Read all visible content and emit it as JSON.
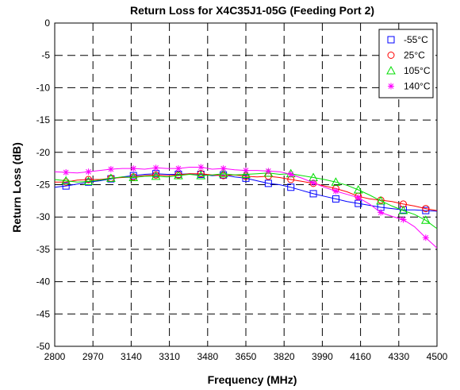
{
  "chart_data": {
    "type": "line",
    "title": "Return Loss for X4C35J1-05G (Feeding Port 2)",
    "xlabel": "Frequency (MHz)",
    "ylabel": "Return Loss (dB)",
    "xlim": [
      2800,
      4500
    ],
    "ylim": [
      -50,
      0
    ],
    "xticks": [
      2800,
      2970,
      3140,
      3310,
      3480,
      3650,
      3820,
      3990,
      4160,
      4330,
      4500
    ],
    "yticks": [
      0,
      -5,
      -10,
      -15,
      -20,
      -25,
      -30,
      -35,
      -40,
      -45,
      -50
    ],
    "grid": true,
    "legend_position": "top-right",
    "series": [
      {
        "name": "-55°C",
        "color": "#0000ff",
        "marker": "square",
        "x": [
          2800,
          2850,
          2900,
          2950,
          3000,
          3050,
          3100,
          3150,
          3200,
          3250,
          3300,
          3350,
          3400,
          3450,
          3500,
          3550,
          3600,
          3650,
          3700,
          3750,
          3800,
          3850,
          3900,
          3950,
          4000,
          4050,
          4100,
          4150,
          4200,
          4250,
          4300,
          4350,
          4400,
          4450,
          4500
        ],
        "y": [
          -25.4,
          -25.2,
          -24.9,
          -24.6,
          -24.4,
          -24.1,
          -23.8,
          -23.6,
          -23.4,
          -23.3,
          -23.4,
          -23.4,
          -23.3,
          -23.4,
          -23.6,
          -23.5,
          -23.8,
          -24.0,
          -24.4,
          -24.8,
          -25.0,
          -25.4,
          -25.9,
          -26.4,
          -26.8,
          -27.2,
          -27.6,
          -27.9,
          -28.2,
          -28.5,
          -28.7,
          -28.9,
          -28.9,
          -29.0,
          -29.1
        ]
      },
      {
        "name": "25°C",
        "color": "#ff0000",
        "marker": "circle",
        "x": [
          2800,
          2850,
          2900,
          2950,
          3000,
          3050,
          3100,
          3150,
          3200,
          3250,
          3300,
          3350,
          3400,
          3450,
          3500,
          3550,
          3600,
          3650,
          3700,
          3750,
          3800,
          3850,
          3900,
          3950,
          4000,
          4050,
          4100,
          4150,
          4200,
          4250,
          4300,
          4350,
          4400,
          4450,
          4500
        ],
        "y": [
          -24.6,
          -24.6,
          -24.3,
          -24.2,
          -24.2,
          -24.0,
          -23.9,
          -23.8,
          -23.6,
          -23.5,
          -23.6,
          -23.5,
          -23.3,
          -23.3,
          -23.5,
          -23.6,
          -23.5,
          -23.7,
          -23.8,
          -23.7,
          -23.9,
          -24.2,
          -24.5,
          -24.8,
          -25.2,
          -25.6,
          -26.1,
          -26.8,
          -27.2,
          -27.4,
          -27.6,
          -28.0,
          -28.3,
          -28.7,
          -29.0
        ]
      },
      {
        "name": "105°C",
        "color": "#00dd00",
        "marker": "triangle",
        "x": [
          2800,
          2850,
          2900,
          2950,
          3000,
          3050,
          3100,
          3150,
          3200,
          3250,
          3300,
          3350,
          3400,
          3450,
          3500,
          3550,
          3600,
          3650,
          3700,
          3750,
          3800,
          3850,
          3900,
          3950,
          4000,
          4050,
          4100,
          4150,
          4200,
          4250,
          4300,
          4350,
          4400,
          4450,
          4500
        ],
        "y": [
          -24.2,
          -24.4,
          -24.6,
          -24.5,
          -24.3,
          -24.0,
          -23.8,
          -23.9,
          -23.7,
          -23.7,
          -23.8,
          -23.6,
          -23.4,
          -23.6,
          -23.5,
          -23.3,
          -23.5,
          -23.4,
          -23.3,
          -23.2,
          -23.4,
          -23.3,
          -23.6,
          -23.9,
          -24.2,
          -24.6,
          -25.1,
          -25.8,
          -26.6,
          -27.5,
          -28.3,
          -29.0,
          -29.6,
          -30.5,
          -31.8
        ]
      },
      {
        "name": "140°C",
        "color": "#ff00ff",
        "marker": "asterisk",
        "x": [
          2800,
          2850,
          2900,
          2950,
          3000,
          3050,
          3100,
          3150,
          3200,
          3250,
          3300,
          3350,
          3400,
          3450,
          3500,
          3550,
          3600,
          3650,
          3700,
          3750,
          3800,
          3850,
          3900,
          3950,
          4000,
          4050,
          4100,
          4150,
          4200,
          4250,
          4300,
          4350,
          4400,
          4450,
          4500
        ],
        "y": [
          -23.0,
          -23.1,
          -23.2,
          -23.0,
          -22.8,
          -22.6,
          -22.5,
          -22.5,
          -22.6,
          -22.4,
          -22.5,
          -22.5,
          -22.3,
          -22.3,
          -22.6,
          -22.5,
          -22.7,
          -22.8,
          -22.8,
          -22.9,
          -23.0,
          -23.4,
          -24.0,
          -24.7,
          -25.4,
          -26.0,
          -26.5,
          -27.0,
          -28.0,
          -29.3,
          -29.9,
          -30.4,
          -31.5,
          -33.2,
          -34.8
        ]
      }
    ]
  }
}
